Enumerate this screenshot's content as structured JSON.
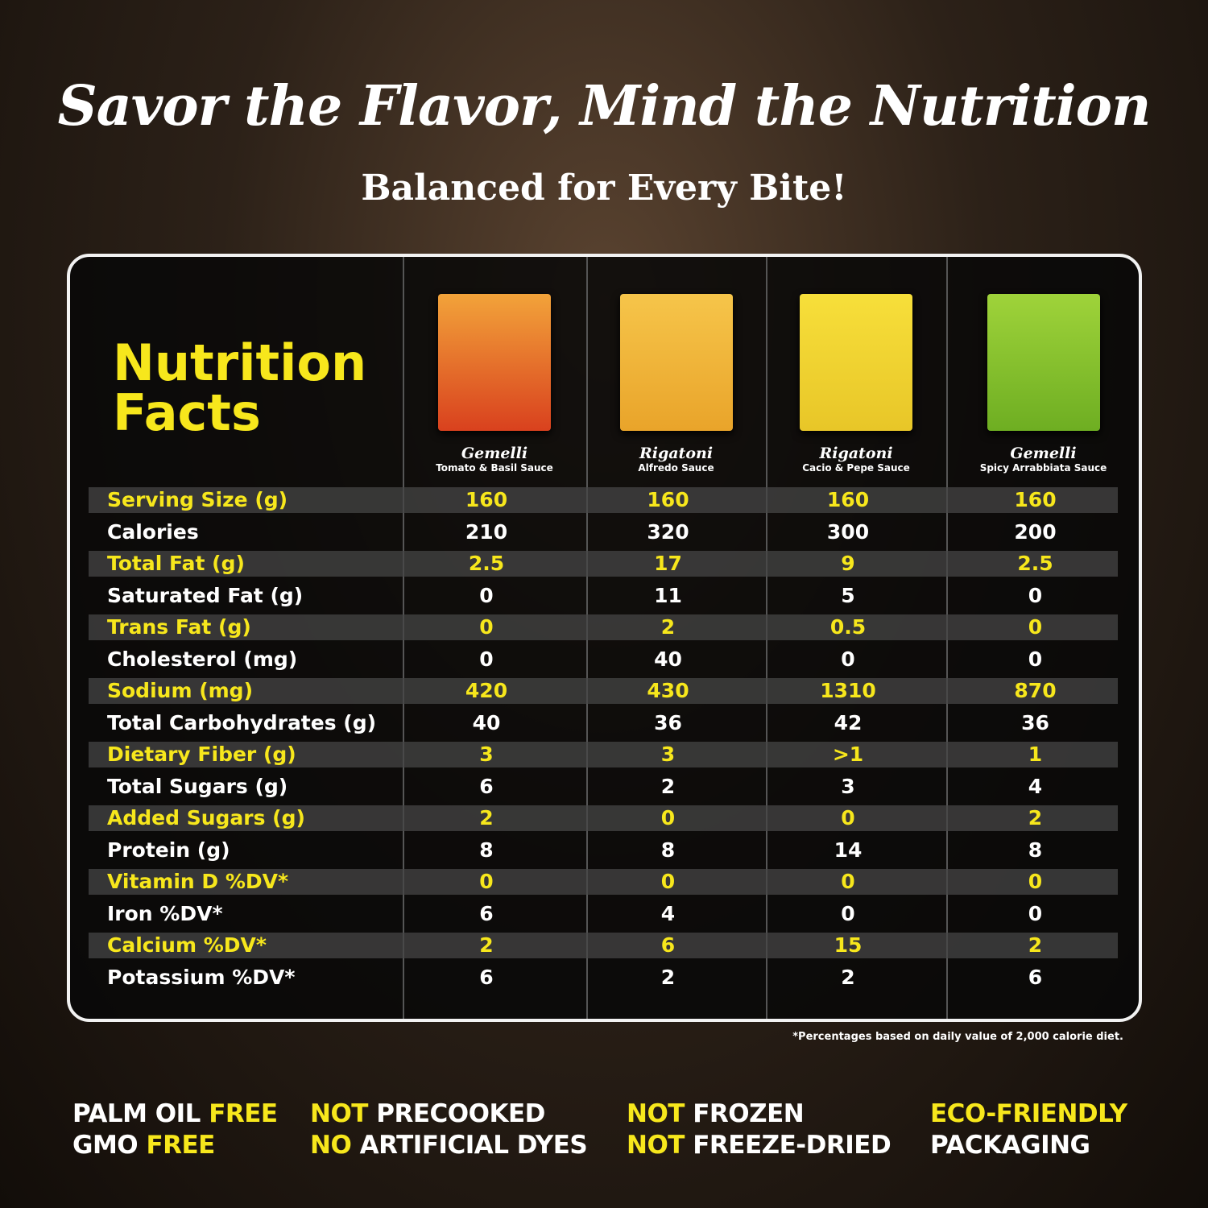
{
  "header": {
    "title": "Savor the Flavor, Mind the Nutrition",
    "subtitle": "Balanced for Every Bite!"
  },
  "table": {
    "heading": [
      "Nutrition",
      "Facts"
    ],
    "products": [
      {
        "name": "Gemelli",
        "sauce": "Tomato & Basil Sauce"
      },
      {
        "name": "Rigatoni",
        "sauce": "Alfredo Sauce"
      },
      {
        "name": "Rigatoni",
        "sauce": "Cacio & Pepe Sauce"
      },
      {
        "name": "Gemelli",
        "sauce": "Spicy Arrabbiata Sauce"
      }
    ],
    "rows": [
      [
        "Serving Size (g)",
        160,
        160,
        160,
        160
      ],
      [
        "Calories",
        210,
        320,
        300,
        200
      ],
      [
        "Total Fat (g)",
        2.5,
        17,
        9,
        2.5
      ],
      [
        "Saturated Fat (g)",
        0,
        11,
        5,
        0
      ],
      [
        "Trans Fat (g)",
        0,
        2,
        0.5,
        0
      ],
      [
        "Cholesterol (mg)",
        0,
        40,
        0,
        0
      ],
      [
        "Sodium (mg)",
        420,
        430,
        1310,
        870
      ],
      [
        "Total Carbohydrates (g)",
        40,
        36,
        42,
        36
      ],
      [
        "Dietary Fiber (g)",
        3,
        3,
        ">1",
        1
      ],
      [
        "Total Sugars (g)",
        6,
        2,
        3,
        4
      ],
      [
        "Added Sugars (g)",
        2,
        0,
        0,
        2
      ],
      [
        "Protein (g)",
        8,
        8,
        14,
        8
      ],
      [
        "Vitamin D %DV*",
        0,
        0,
        0,
        0
      ],
      [
        "Iron %DV*",
        6,
        4,
        0,
        0
      ],
      [
        "Calcium %DV*",
        2,
        6,
        15,
        2
      ],
      [
        "Potassium %DV*",
        6,
        2,
        2,
        6
      ]
    ],
    "footnote": "*Percentages based on daily value of 2,000 calorie diet."
  },
  "features": [
    [
      [
        {
          "text": "PALM OIL ",
          "highlight": false
        },
        {
          "text": "FREE",
          "highlight": true
        }
      ],
      [
        {
          "text": "GMO ",
          "highlight": false
        },
        {
          "text": "FREE",
          "highlight": true
        }
      ]
    ],
    [
      [
        {
          "text": "NOT ",
          "highlight": true
        },
        {
          "text": "PRECOOKED",
          "highlight": false
        }
      ],
      [
        {
          "text": "NO ",
          "highlight": true
        },
        {
          "text": "ARTIFICIAL DYES",
          "highlight": false
        }
      ]
    ],
    [
      [
        {
          "text": "NOT ",
          "highlight": true
        },
        {
          "text": "FROZEN",
          "highlight": false
        }
      ],
      [
        {
          "text": "NOT ",
          "highlight": true
        },
        {
          "text": "FREEZE-DRIED",
          "highlight": false
        }
      ]
    ],
    [
      [
        {
          "text": "ECO-FRIENDLY",
          "highlight": true
        }
      ],
      [
        {
          "text": "PACKAGING",
          "highlight": false
        }
      ]
    ]
  ]
}
